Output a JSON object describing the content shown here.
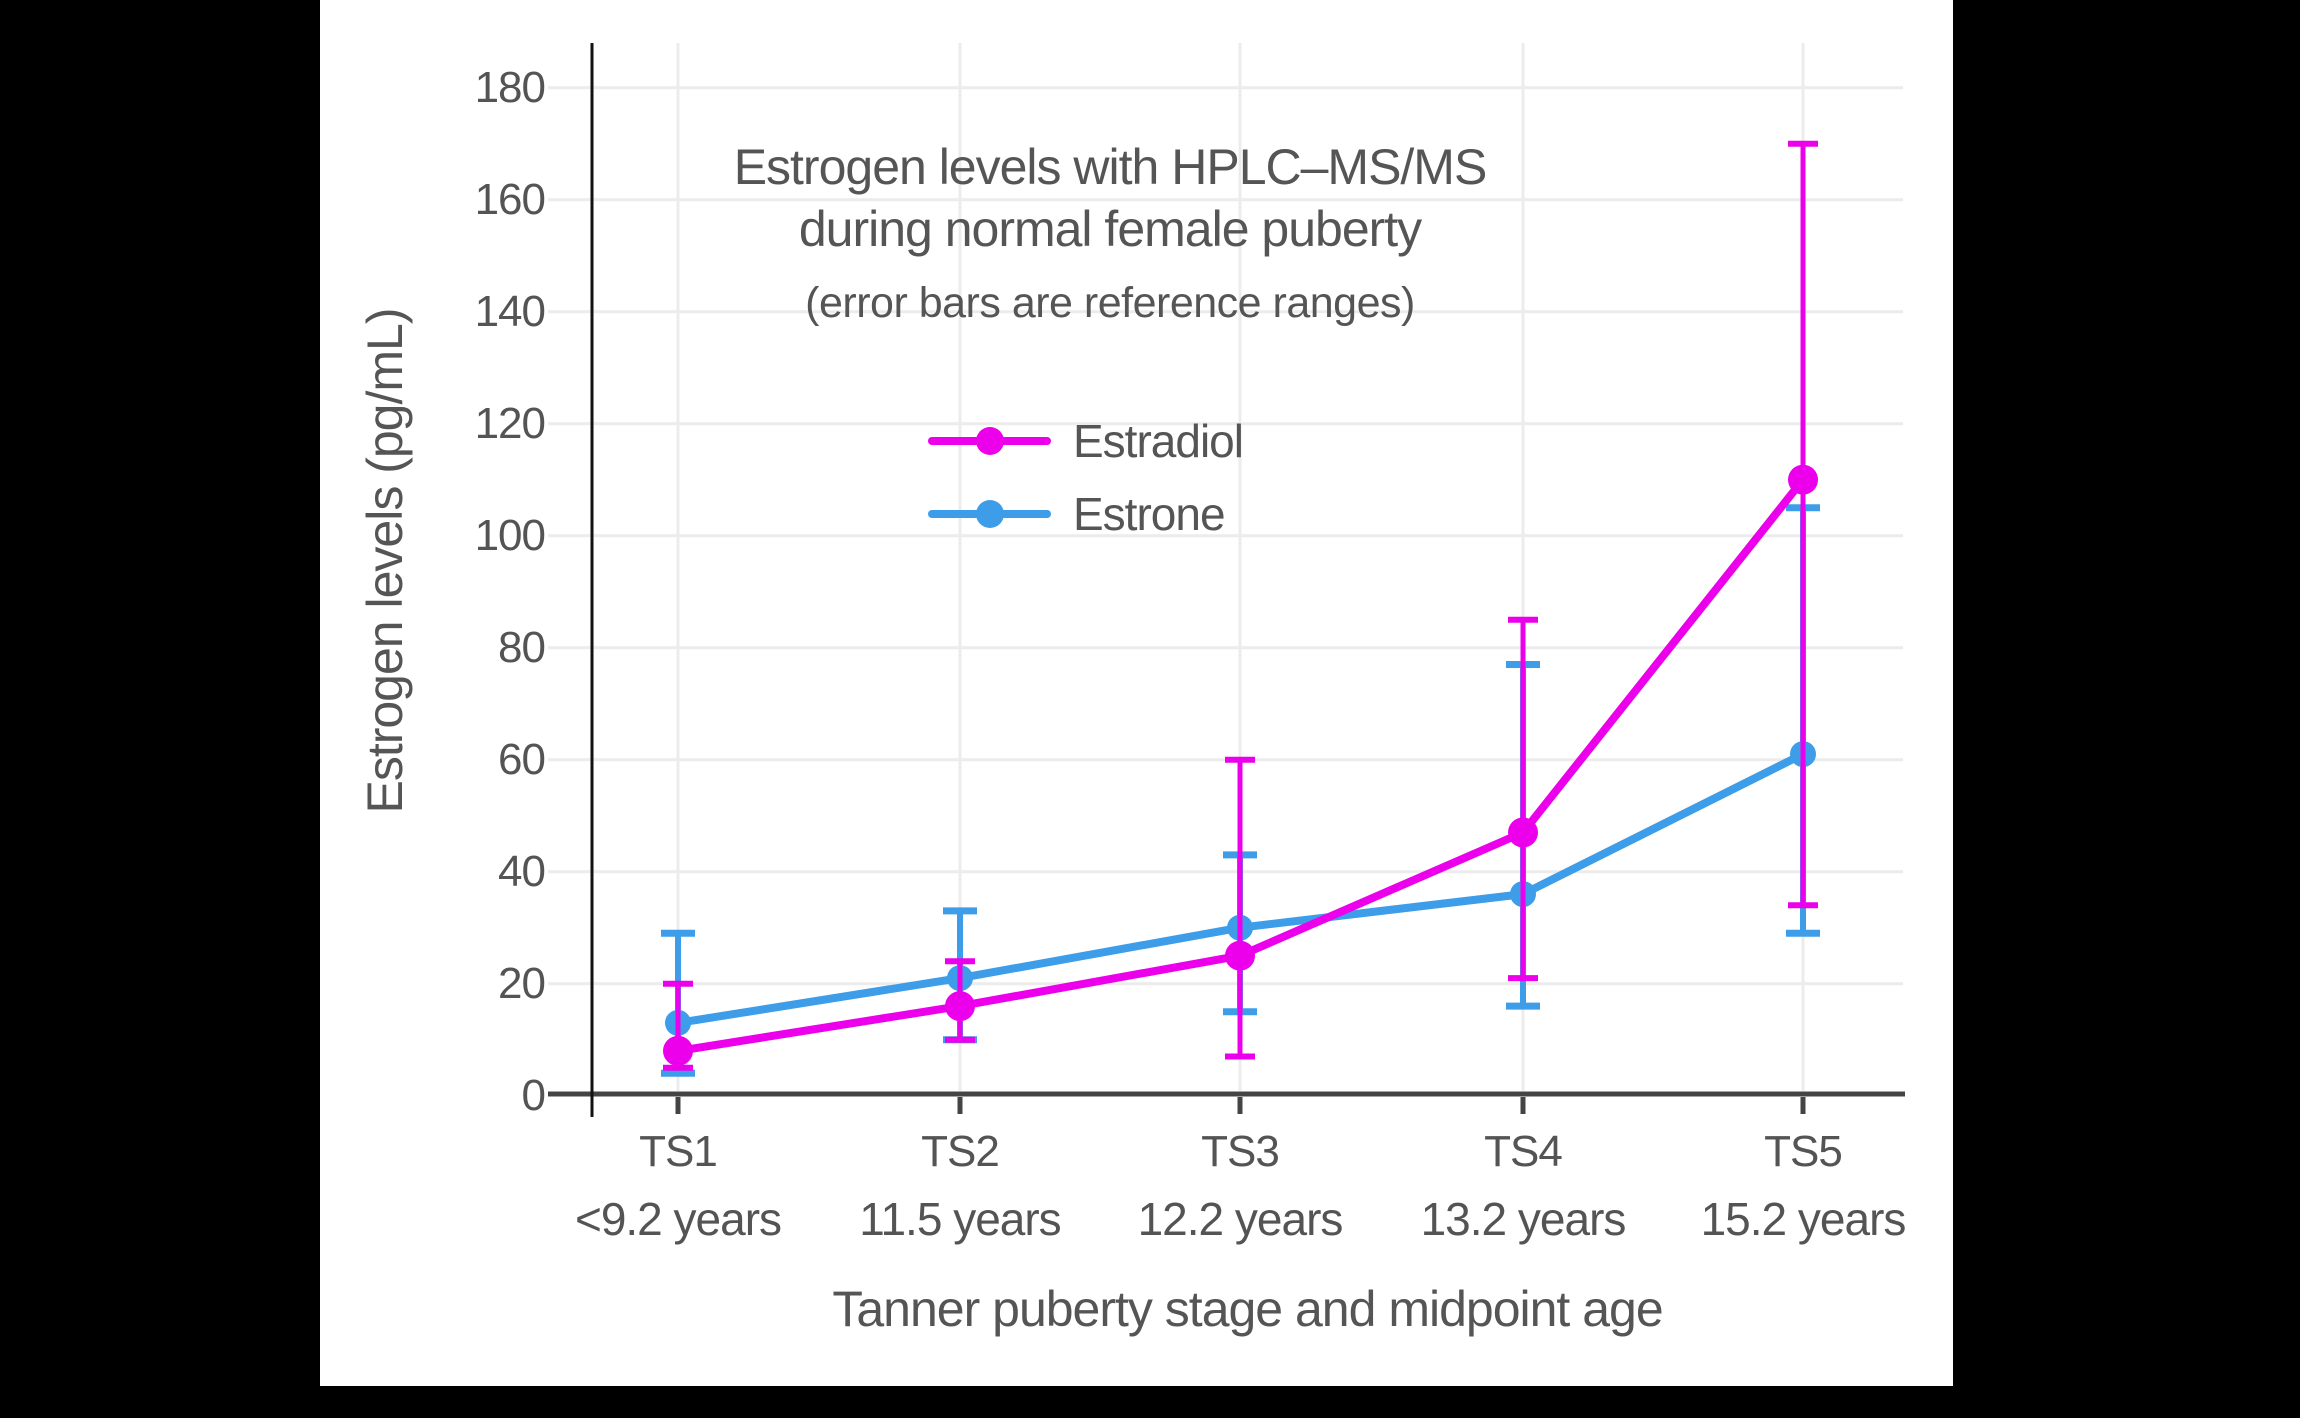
{
  "chart_data": {
    "type": "line",
    "title_lines": [
      "Estrogen levels with HPLC–MS/MS",
      "during normal female puberty"
    ],
    "subtitle": "(error bars are reference ranges)",
    "xlabel": "Tanner puberty stage and midpoint age",
    "ylabel": "Estrogen levels (pg/mL)",
    "categories": [
      "TS1",
      "TS2",
      "TS3",
      "TS4",
      "TS5"
    ],
    "category_sublabels": [
      "<9.2 years",
      "11.5 years",
      "12.2 years",
      "13.2 years",
      "15.2 years"
    ],
    "y_ticks": [
      0,
      20,
      40,
      60,
      80,
      100,
      120,
      140,
      160,
      180
    ],
    "ylim": [
      0,
      188
    ],
    "grid": true,
    "legend_position": "inside-top-center",
    "error_bar_meaning": "reference ranges",
    "series": [
      {
        "name": "Estradiol",
        "color": "#EC00EC",
        "values": [
          8,
          16,
          25,
          47,
          110
        ],
        "error_low": [
          5,
          10,
          7,
          21,
          34
        ],
        "error_high": [
          20,
          24,
          60,
          85,
          170
        ]
      },
      {
        "name": "Estrone",
        "color": "#3D9DE9",
        "values": [
          13,
          21,
          30,
          36,
          61
        ],
        "error_low": [
          4,
          10,
          15,
          16,
          29
        ],
        "error_high": [
          29,
          33,
          43,
          77,
          105
        ]
      }
    ],
    "colors": {
      "background": "#000000",
      "plot_background": "#ffffff",
      "gridline": "#ECECEC",
      "x_axis": "#444444",
      "y_axis": "#111111",
      "text": "#555555"
    }
  }
}
